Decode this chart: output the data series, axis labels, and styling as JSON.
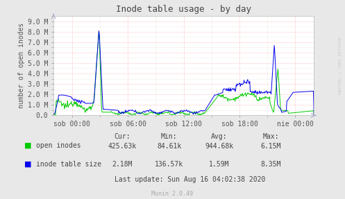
{
  "title": "Inode table usage - by day",
  "ylabel": "number of open inodes",
  "bg_color": "#e8e8e8",
  "plot_bg_color": "#ffffff",
  "ytick_labels": [
    "0.0",
    "1.0 M",
    "2.0 M",
    "3.0 M",
    "4.0 M",
    "5.0 M",
    "6.0 M",
    "7.0 M",
    "8.0 M",
    "9.0 M"
  ],
  "ytick_vals": [
    0.0,
    1.0,
    2.0,
    3.0,
    4.0,
    5.0,
    6.0,
    7.0,
    8.0,
    9.0
  ],
  "ylim": [
    0,
    9.5
  ],
  "xtick_labels": [
    "sob 00:00",
    "sob 06:00",
    "sob 12:00",
    "sob 18:00",
    "nie 00:00"
  ],
  "stats_headers": [
    "Cur:",
    "Min:",
    "Avg:",
    "Max:"
  ],
  "stats_row1": [
    "425.63k",
    "84.61k",
    "944.68k",
    "6.15M"
  ],
  "stats_row2": [
    "2.18M",
    "136.57k",
    "1.59M",
    "8.35M"
  ],
  "last_update": "Last update: Sun Aug 16 04:02:38 2020",
  "munin_version": "Munin 2.0.49",
  "right_label": "RRDTOOL / TOBI OETIKER",
  "title_color": "#444444",
  "tick_color": "#555555",
  "text_color": "#444444",
  "green_color": "#00cc00",
  "blue_color": "#0000ee",
  "grid_major_color": "#ffaaaa",
  "grid_minor_color": "#ddcccc",
  "right_label_color": "#cccccc",
  "arrow_color": "#aaaacc"
}
